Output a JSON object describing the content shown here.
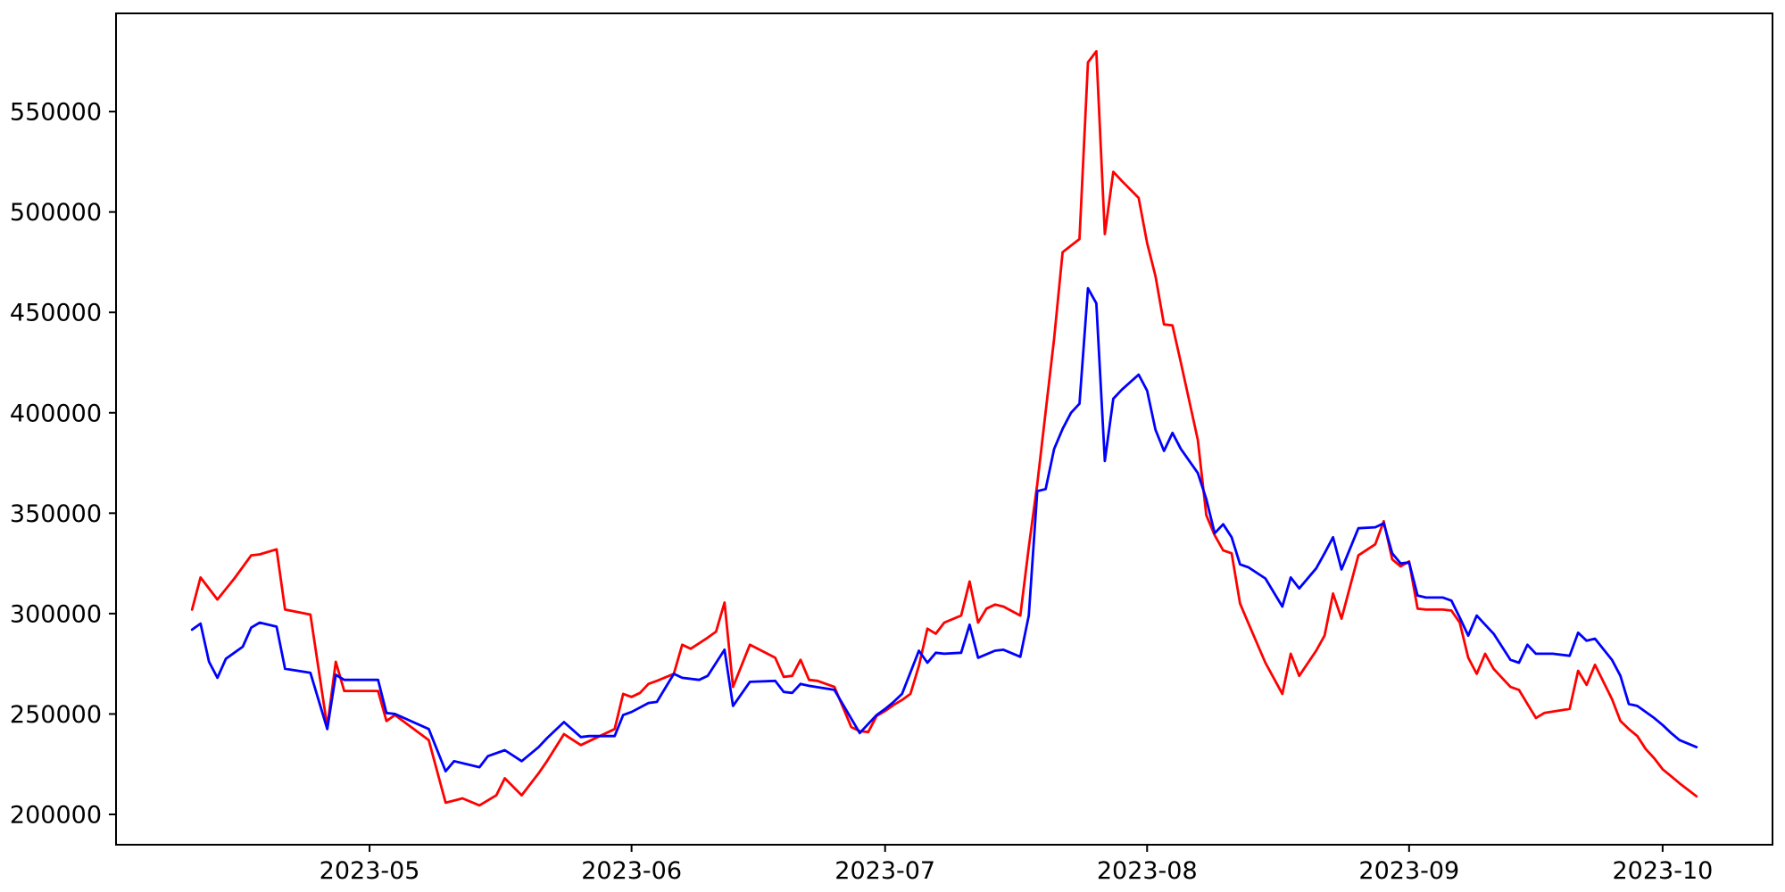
{
  "chart_data": {
    "type": "line",
    "title": "",
    "xlabel": "",
    "ylabel": "",
    "grid": false,
    "legend": null,
    "background_color": "#ffffff",
    "frame_color": "#000000",
    "x_range": [
      "2023-04-01",
      "2023-10-14"
    ],
    "ylim": [
      184900,
      598900
    ],
    "y_ticks": [
      200000,
      250000,
      300000,
      350000,
      400000,
      450000,
      500000,
      550000
    ],
    "x_ticks": [
      {
        "label": "2023-05",
        "date": "2023-05-01"
      },
      {
        "label": "2023-06",
        "date": "2023-06-01"
      },
      {
        "label": "2023-07",
        "date": "2023-07-01"
      },
      {
        "label": "2023-08",
        "date": "2023-08-01"
      },
      {
        "label": "2023-09",
        "date": "2023-09-01"
      },
      {
        "label": "2023-10",
        "date": "2023-10-01"
      }
    ],
    "series": [
      {
        "name": "red-series",
        "color": "#ff0000",
        "points": [
          [
            "2023-04-10",
            302000
          ],
          [
            "2023-04-11",
            318000
          ],
          [
            "2023-04-13",
            307000
          ],
          [
            "2023-04-15",
            317500
          ],
          [
            "2023-04-17",
            329000
          ],
          [
            "2023-04-18",
            329500
          ],
          [
            "2023-04-20",
            332000
          ],
          [
            "2023-04-21",
            302000
          ],
          [
            "2023-04-24",
            299500
          ],
          [
            "2023-04-26",
            243500
          ],
          [
            "2023-04-27",
            276000
          ],
          [
            "2023-04-28",
            261500
          ],
          [
            "2023-05-02",
            261500
          ],
          [
            "2023-05-03",
            246500
          ],
          [
            "2023-05-04",
            249500
          ],
          [
            "2023-05-08",
            237000
          ],
          [
            "2023-05-10",
            205800
          ],
          [
            "2023-05-12",
            208000
          ],
          [
            "2023-05-14",
            204500
          ],
          [
            "2023-05-16",
            209500
          ],
          [
            "2023-05-17",
            218000
          ],
          [
            "2023-05-19",
            209500
          ],
          [
            "2023-05-21",
            220500
          ],
          [
            "2023-05-22",
            226500
          ],
          [
            "2023-05-24",
            240000
          ],
          [
            "2023-05-26",
            234500
          ],
          [
            "2023-05-30",
            242500
          ],
          [
            "2023-05-31",
            260000
          ],
          [
            "2023-06-01",
            258500
          ],
          [
            "2023-06-02",
            260500
          ],
          [
            "2023-06-03",
            265000
          ],
          [
            "2023-06-04",
            266500
          ],
          [
            "2023-06-06",
            270000
          ],
          [
            "2023-06-07",
            284500
          ],
          [
            "2023-06-08",
            282500
          ],
          [
            "2023-06-10",
            288000
          ],
          [
            "2023-06-11",
            291000
          ],
          [
            "2023-06-12",
            305500
          ],
          [
            "2023-06-13",
            263500
          ],
          [
            "2023-06-15",
            284500
          ],
          [
            "2023-06-18",
            278000
          ],
          [
            "2023-06-19",
            268500
          ],
          [
            "2023-06-20",
            269000
          ],
          [
            "2023-06-21",
            277000
          ],
          [
            "2023-06-22",
            267000
          ],
          [
            "2023-06-23",
            266500
          ],
          [
            "2023-06-25",
            263500
          ],
          [
            "2023-06-27",
            243500
          ],
          [
            "2023-06-28",
            241500
          ],
          [
            "2023-06-29",
            241000
          ],
          [
            "2023-06-30",
            249000
          ],
          [
            "2023-07-01",
            251500
          ],
          [
            "2023-07-02",
            254500
          ],
          [
            "2023-07-03",
            257000
          ],
          [
            "2023-07-04",
            260000
          ],
          [
            "2023-07-05",
            274000
          ],
          [
            "2023-07-06",
            292500
          ],
          [
            "2023-07-07",
            290000
          ],
          [
            "2023-07-08",
            295500
          ],
          [
            "2023-07-10",
            299000
          ],
          [
            "2023-07-11",
            316000
          ],
          [
            "2023-07-12",
            295500
          ],
          [
            "2023-07-13",
            302500
          ],
          [
            "2023-07-14",
            304500
          ],
          [
            "2023-07-15",
            303500
          ],
          [
            "2023-07-17",
            299000
          ],
          [
            "2023-07-18",
            333000
          ],
          [
            "2023-07-19",
            364500
          ],
          [
            "2023-07-21",
            437000
          ],
          [
            "2023-07-22",
            480000
          ],
          [
            "2023-07-24",
            486500
          ],
          [
            "2023-07-25",
            574500
          ],
          [
            "2023-07-26",
            580000
          ],
          [
            "2023-07-27",
            489000
          ],
          [
            "2023-07-28",
            520000
          ],
          [
            "2023-07-29",
            515500
          ],
          [
            "2023-07-31",
            507000
          ],
          [
            "2023-08-01",
            484500
          ],
          [
            "2023-08-02",
            468000
          ],
          [
            "2023-08-03",
            444000
          ],
          [
            "2023-08-04",
            443500
          ],
          [
            "2023-08-05",
            425000
          ],
          [
            "2023-08-07",
            386500
          ],
          [
            "2023-08-08",
            349000
          ],
          [
            "2023-08-09",
            339000
          ],
          [
            "2023-08-10",
            331500
          ],
          [
            "2023-08-11",
            330000
          ],
          [
            "2023-08-12",
            305000
          ],
          [
            "2023-08-13",
            295000
          ],
          [
            "2023-08-15",
            275500
          ],
          [
            "2023-08-17",
            260000
          ],
          [
            "2023-08-18",
            280000
          ],
          [
            "2023-08-19",
            269000
          ],
          [
            "2023-08-21",
            281500
          ],
          [
            "2023-08-22",
            289000
          ],
          [
            "2023-08-23",
            310000
          ],
          [
            "2023-08-24",
            297500
          ],
          [
            "2023-08-26",
            329000
          ],
          [
            "2023-08-28",
            334500
          ],
          [
            "2023-08-29",
            346000
          ],
          [
            "2023-08-30",
            327000
          ],
          [
            "2023-08-31",
            323500
          ],
          [
            "2023-09-01",
            326000
          ],
          [
            "2023-09-02",
            302500
          ],
          [
            "2023-09-03",
            302000
          ],
          [
            "2023-09-05",
            302000
          ],
          [
            "2023-09-06",
            301500
          ],
          [
            "2023-09-07",
            295500
          ],
          [
            "2023-09-08",
            278000
          ],
          [
            "2023-09-09",
            270000
          ],
          [
            "2023-09-10",
            280000
          ],
          [
            "2023-09-11",
            272500
          ],
          [
            "2023-09-13",
            263500
          ],
          [
            "2023-09-14",
            262000
          ],
          [
            "2023-09-15",
            255000
          ],
          [
            "2023-09-16",
            248000
          ],
          [
            "2023-09-17",
            250500
          ],
          [
            "2023-09-20",
            252500
          ],
          [
            "2023-09-21",
            271500
          ],
          [
            "2023-09-22",
            264500
          ],
          [
            "2023-09-23",
            274500
          ],
          [
            "2023-09-25",
            257500
          ],
          [
            "2023-09-26",
            246500
          ],
          [
            "2023-09-27",
            242500
          ],
          [
            "2023-09-28",
            239000
          ],
          [
            "2023-09-29",
            232500
          ],
          [
            "2023-09-30",
            228000
          ],
          [
            "2023-10-01",
            222500
          ],
          [
            "2023-10-02",
            219000
          ],
          [
            "2023-10-03",
            215500
          ],
          [
            "2023-10-05",
            209000
          ]
        ]
      },
      {
        "name": "blue-series",
        "color": "#0000ff",
        "points": [
          [
            "2023-04-10",
            292000
          ],
          [
            "2023-04-11",
            295000
          ],
          [
            "2023-04-12",
            276000
          ],
          [
            "2023-04-13",
            268000
          ],
          [
            "2023-04-14",
            277500
          ],
          [
            "2023-04-16",
            283500
          ],
          [
            "2023-04-17",
            293000
          ],
          [
            "2023-04-18",
            295500
          ],
          [
            "2023-04-20",
            293500
          ],
          [
            "2023-04-21",
            272500
          ],
          [
            "2023-04-24",
            270500
          ],
          [
            "2023-04-26",
            242500
          ],
          [
            "2023-04-27",
            269500
          ],
          [
            "2023-04-28",
            267000
          ],
          [
            "2023-05-02",
            267000
          ],
          [
            "2023-05-03",
            250500
          ],
          [
            "2023-05-04",
            250000
          ],
          [
            "2023-05-08",
            242500
          ],
          [
            "2023-05-10",
            221500
          ],
          [
            "2023-05-11",
            226500
          ],
          [
            "2023-05-14",
            223500
          ],
          [
            "2023-05-15",
            229000
          ],
          [
            "2023-05-17",
            232000
          ],
          [
            "2023-05-19",
            226500
          ],
          [
            "2023-05-21",
            233500
          ],
          [
            "2023-05-22",
            238000
          ],
          [
            "2023-05-24",
            246000
          ],
          [
            "2023-05-26",
            238500
          ],
          [
            "2023-05-27",
            239000
          ],
          [
            "2023-05-30",
            239000
          ],
          [
            "2023-05-31",
            249500
          ],
          [
            "2023-06-01",
            251000
          ],
          [
            "2023-06-03",
            255500
          ],
          [
            "2023-06-04",
            256000
          ],
          [
            "2023-06-06",
            270000
          ],
          [
            "2023-06-07",
            268000
          ],
          [
            "2023-06-09",
            267000
          ],
          [
            "2023-06-10",
            269000
          ],
          [
            "2023-06-12",
            282000
          ],
          [
            "2023-06-13",
            254000
          ],
          [
            "2023-06-15",
            266000
          ],
          [
            "2023-06-18",
            266500
          ],
          [
            "2023-06-19",
            261000
          ],
          [
            "2023-06-20",
            260500
          ],
          [
            "2023-06-21",
            265000
          ],
          [
            "2023-06-22",
            264000
          ],
          [
            "2023-06-25",
            262000
          ],
          [
            "2023-06-28",
            240500
          ],
          [
            "2023-06-30",
            249500
          ],
          [
            "2023-07-01",
            252500
          ],
          [
            "2023-07-02",
            256000
          ],
          [
            "2023-07-03",
            260000
          ],
          [
            "2023-07-05",
            281500
          ],
          [
            "2023-07-06",
            275500
          ],
          [
            "2023-07-07",
            280500
          ],
          [
            "2023-07-08",
            280000
          ],
          [
            "2023-07-10",
            280500
          ],
          [
            "2023-07-11",
            294500
          ],
          [
            "2023-07-12",
            278000
          ],
          [
            "2023-07-14",
            281500
          ],
          [
            "2023-07-15",
            282000
          ],
          [
            "2023-07-17",
            278500
          ],
          [
            "2023-07-18",
            299000
          ],
          [
            "2023-07-19",
            361000
          ],
          [
            "2023-07-20",
            362000
          ],
          [
            "2023-07-21",
            382000
          ],
          [
            "2023-07-22",
            392000
          ],
          [
            "2023-07-23",
            400000
          ],
          [
            "2023-07-24",
            404500
          ],
          [
            "2023-07-25",
            462000
          ],
          [
            "2023-07-26",
            454500
          ],
          [
            "2023-07-27",
            376000
          ],
          [
            "2023-07-28",
            407000
          ],
          [
            "2023-07-29",
            411500
          ],
          [
            "2023-07-31",
            419000
          ],
          [
            "2023-08-01",
            411000
          ],
          [
            "2023-08-02",
            391500
          ],
          [
            "2023-08-03",
            381000
          ],
          [
            "2023-08-04",
            390000
          ],
          [
            "2023-08-05",
            382000
          ],
          [
            "2023-08-07",
            370000
          ],
          [
            "2023-08-08",
            357000
          ],
          [
            "2023-08-09",
            340000
          ],
          [
            "2023-08-10",
            344500
          ],
          [
            "2023-08-11",
            338000
          ],
          [
            "2023-08-12",
            324500
          ],
          [
            "2023-08-13",
            323000
          ],
          [
            "2023-08-15",
            317500
          ],
          [
            "2023-08-17",
            303500
          ],
          [
            "2023-08-18",
            318000
          ],
          [
            "2023-08-19",
            312500
          ],
          [
            "2023-08-21",
            322500
          ],
          [
            "2023-08-22",
            330000
          ],
          [
            "2023-08-23",
            338000
          ],
          [
            "2023-08-24",
            322000
          ],
          [
            "2023-08-26",
            342500
          ],
          [
            "2023-08-28",
            343000
          ],
          [
            "2023-08-29",
            345000
          ],
          [
            "2023-08-30",
            330000
          ],
          [
            "2023-08-31",
            325000
          ],
          [
            "2023-09-01",
            325500
          ],
          [
            "2023-09-02",
            309000
          ],
          [
            "2023-09-03",
            308000
          ],
          [
            "2023-09-05",
            308000
          ],
          [
            "2023-09-06",
            306500
          ],
          [
            "2023-09-07",
            298000
          ],
          [
            "2023-09-08",
            289000
          ],
          [
            "2023-09-09",
            299000
          ],
          [
            "2023-09-10",
            294500
          ],
          [
            "2023-09-11",
            290000
          ],
          [
            "2023-09-13",
            277000
          ],
          [
            "2023-09-14",
            275500
          ],
          [
            "2023-09-15",
            284500
          ],
          [
            "2023-09-16",
            280000
          ],
          [
            "2023-09-18",
            280000
          ],
          [
            "2023-09-20",
            279000
          ],
          [
            "2023-09-21",
            290500
          ],
          [
            "2023-09-22",
            286500
          ],
          [
            "2023-09-23",
            287500
          ],
          [
            "2023-09-25",
            277000
          ],
          [
            "2023-09-26",
            269000
          ],
          [
            "2023-09-27",
            255000
          ],
          [
            "2023-09-28",
            254000
          ],
          [
            "2023-09-30",
            248000
          ],
          [
            "2023-10-01",
            244500
          ],
          [
            "2023-10-02",
            240500
          ],
          [
            "2023-10-03",
            237000
          ],
          [
            "2023-10-05",
            233500
          ]
        ]
      }
    ]
  }
}
